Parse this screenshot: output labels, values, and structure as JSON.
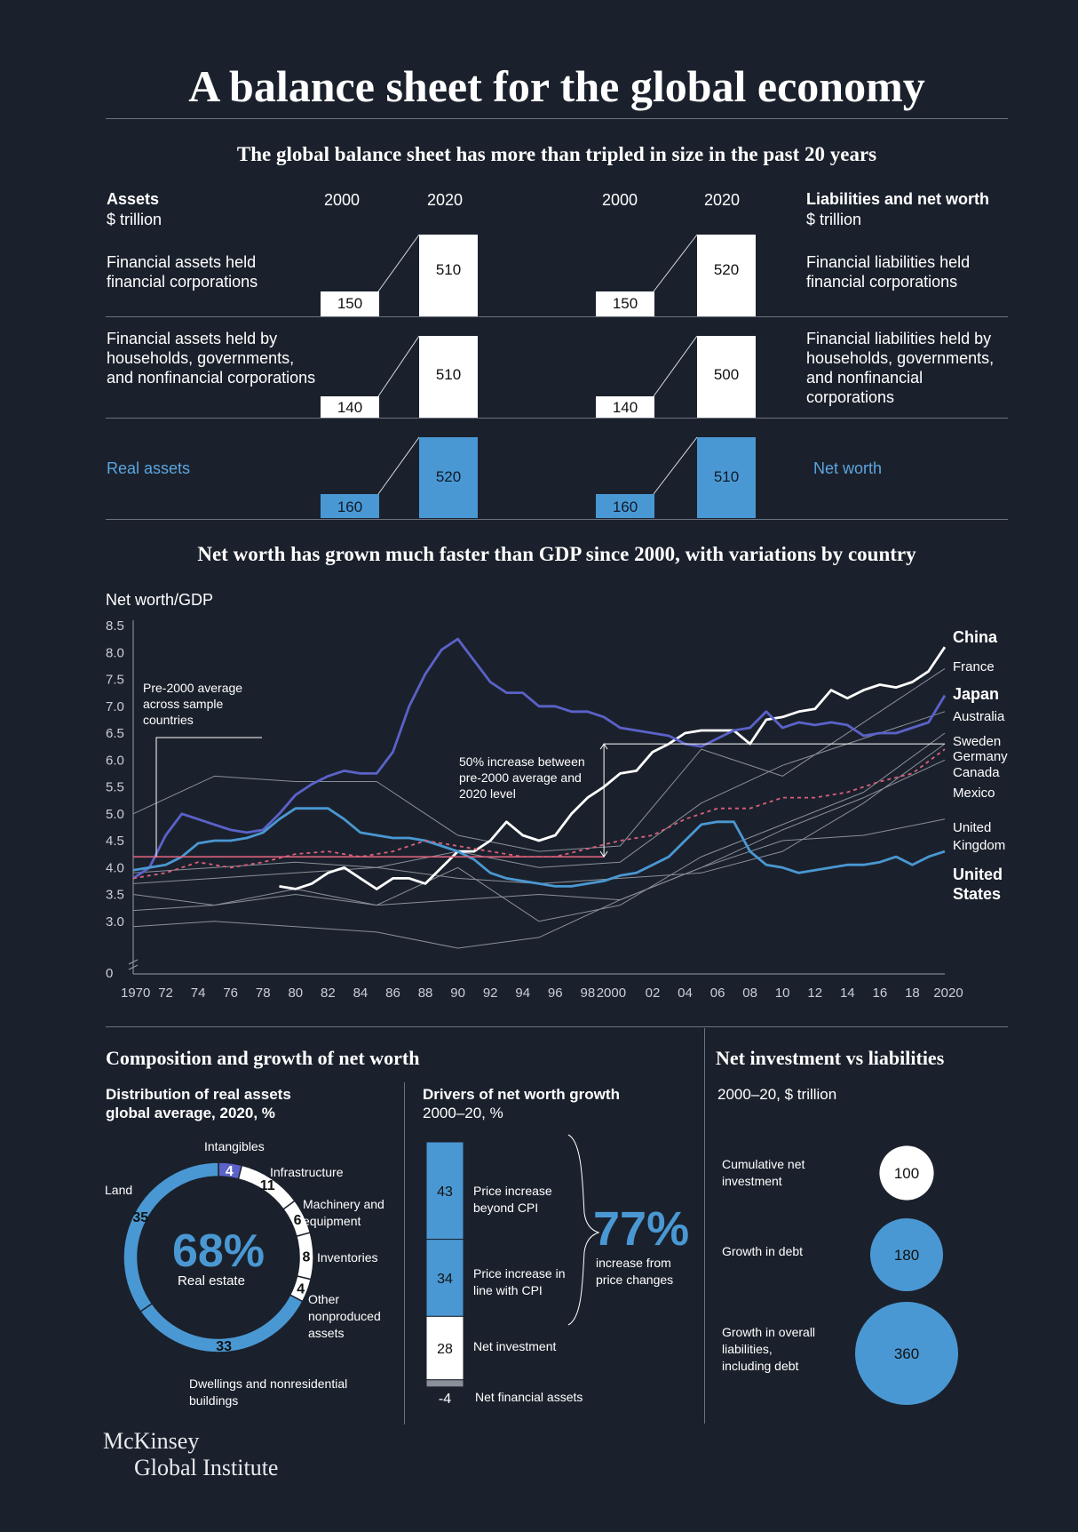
{
  "title": "A balance sheet for the global economy",
  "section1": {
    "subtitle": "The global balance sheet has more than tripled in size in the past 20 years",
    "assets_header": "Assets",
    "assets_unit": "$ trillion",
    "liab_header": "Liabilities and net worth",
    "liab_unit": "$ trillion",
    "year_a": "2000",
    "year_b": "2020",
    "rows": [
      {
        "left": "Financial assets held financial corporations",
        "a2000": "150",
        "a2020": "510",
        "l2000": "150",
        "l2020": "520",
        "right": "Financial liabilities held financial corporations"
      },
      {
        "left": "Financial assets held by households, governments, and nonfinancial corporations",
        "a2000": "140",
        "a2020": "510",
        "l2000": "140",
        "l2020": "500",
        "right": "Financial liabilities held by households, governments, and nonfinancial corporations"
      },
      {
        "left": "Real assets",
        "a2000": "160",
        "a2020": "520",
        "l2000": "160",
        "l2020": "510",
        "right": "Net worth"
      }
    ]
  },
  "section2": {
    "subtitle": "Net worth has grown much faster than GDP since 2000, with variations by country",
    "ylabel": "Net worth/GDP",
    "annotation_pre": [
      "Pre-2000 average",
      "across sample",
      "countries"
    ],
    "annotation_increase": [
      "50% increase between",
      "pre-2000 average and",
      "2020 level"
    ],
    "country_labels": [
      "China",
      "France",
      "Japan",
      "Australia",
      "Sweden",
      "Germany",
      "Canada",
      "Mexico",
      "United",
      "Kingdom",
      "United",
      "States"
    ]
  },
  "chart_data": {
    "type": "line",
    "ylim": [
      0,
      8.5
    ],
    "yticks": [
      "0",
      "3.0",
      "3.5",
      "4.0",
      "4.5",
      "5.0",
      "5.5",
      "6.0",
      "6.5",
      "7.0",
      "7.5",
      "8.0",
      "8.5"
    ],
    "xticks": [
      "1970",
      "72",
      "74",
      "76",
      "78",
      "80",
      "82",
      "84",
      "86",
      "88",
      "90",
      "92",
      "94",
      "96",
      "98",
      "2000",
      "02",
      "04",
      "06",
      "08",
      "10",
      "12",
      "14",
      "16",
      "18",
      "2020"
    ],
    "pre2000_average": 4.2,
    "series": [
      {
        "name": "China",
        "color": "#ffffff",
        "x": [
          1979,
          1980,
          1981,
          1982,
          1983,
          1984,
          1985,
          1986,
          1987,
          1988,
          1989,
          1990,
          1991,
          1992,
          1993,
          1994,
          1995,
          1996,
          1997,
          1998,
          1999,
          2000,
          2001,
          2002,
          2003,
          2004,
          2005,
          2006,
          2007,
          2008,
          2009,
          2010,
          2011,
          2012,
          2013,
          2014,
          2015,
          2016,
          2017,
          2018,
          2019,
          2020
        ],
        "y": [
          3.65,
          3.6,
          3.7,
          3.9,
          4.0,
          3.8,
          3.6,
          3.8,
          3.8,
          3.7,
          4.0,
          4.3,
          4.3,
          4.5,
          4.85,
          4.6,
          4.5,
          4.6,
          5.0,
          5.3,
          5.5,
          5.75,
          5.8,
          6.15,
          6.3,
          6.5,
          6.55,
          6.55,
          6.55,
          6.3,
          6.75,
          6.8,
          6.9,
          6.95,
          7.3,
          7.15,
          7.3,
          7.4,
          7.35,
          7.45,
          7.65,
          8.1
        ]
      },
      {
        "name": "Japan",
        "color": "#5b62c9",
        "x": [
          1970,
          1971,
          1972,
          1973,
          1974,
          1975,
          1976,
          1977,
          1978,
          1979,
          1980,
          1981,
          1982,
          1983,
          1984,
          1985,
          1986,
          1987,
          1988,
          1989,
          1990,
          1991,
          1992,
          1993,
          1994,
          1995,
          1996,
          1997,
          1998,
          1999,
          2000,
          2001,
          2002,
          2003,
          2004,
          2005,
          2006,
          2007,
          2008,
          2009,
          2010,
          2011,
          2012,
          2013,
          2014,
          2015,
          2016,
          2017,
          2018,
          2019,
          2020
        ],
        "y": [
          3.8,
          4.0,
          4.6,
          5.0,
          4.9,
          4.8,
          4.7,
          4.65,
          4.7,
          5.0,
          5.35,
          5.55,
          5.7,
          5.8,
          5.75,
          5.75,
          6.15,
          7.0,
          7.6,
          8.05,
          8.25,
          7.85,
          7.45,
          7.25,
          7.25,
          7.0,
          7.0,
          6.9,
          6.9,
          6.8,
          6.6,
          6.55,
          6.5,
          6.45,
          6.3,
          6.25,
          6.4,
          6.55,
          6.6,
          6.9,
          6.6,
          6.7,
          6.65,
          6.7,
          6.65,
          6.45,
          6.5,
          6.5,
          6.6,
          6.7,
          7.2
        ]
      },
      {
        "name": "United States",
        "color": "#4a98d3",
        "x": [
          1970,
          1971,
          1972,
          1973,
          1974,
          1975,
          1976,
          1977,
          1978,
          1979,
          1980,
          1981,
          1982,
          1983,
          1984,
          1985,
          1986,
          1987,
          1988,
          1989,
          1990,
          1991,
          1992,
          1993,
          1994,
          1995,
          1996,
          1997,
          1998,
          1999,
          2000,
          2001,
          2002,
          2003,
          2004,
          2005,
          2006,
          2007,
          2008,
          2009,
          2010,
          2011,
          2012,
          2013,
          2014,
          2015,
          2016,
          2017,
          2018,
          2019,
          2020
        ],
        "y": [
          3.95,
          4.0,
          4.05,
          4.2,
          4.45,
          4.5,
          4.5,
          4.55,
          4.65,
          4.9,
          5.1,
          5.1,
          5.1,
          4.9,
          4.65,
          4.6,
          4.55,
          4.55,
          4.5,
          4.4,
          4.3,
          4.15,
          3.9,
          3.8,
          3.75,
          3.7,
          3.65,
          3.65,
          3.7,
          3.75,
          3.85,
          3.9,
          4.05,
          4.2,
          4.5,
          4.8,
          4.85,
          4.85,
          4.3,
          4.05,
          4.0,
          3.9,
          3.95,
          4.0,
          4.05,
          4.05,
          4.1,
          4.2,
          4.05,
          4.2,
          4.3
        ]
      },
      {
        "name": "Mexico",
        "color": "#d9607b",
        "x": [
          1970,
          1972,
          1974,
          1976,
          1978,
          1980,
          1982,
          1984,
          1986,
          1988,
          1990,
          1992,
          1994,
          1996,
          1998,
          2000,
          2002,
          2004,
          2006,
          2008,
          2010,
          2012,
          2014,
          2016,
          2018,
          2020
        ],
        "y": [
          3.8,
          3.9,
          4.1,
          4.0,
          4.1,
          4.25,
          4.3,
          4.2,
          4.3,
          4.5,
          4.4,
          4.3,
          4.2,
          4.2,
          4.35,
          4.5,
          4.6,
          4.9,
          5.1,
          5.1,
          5.3,
          5.3,
          5.4,
          5.6,
          5.75,
          6.2
        ]
      },
      {
        "name": "France",
        "color": "#8a8f99",
        "x": [
          1970,
          1975,
          1980,
          1985,
          1990,
          1995,
          2000,
          2005,
          2010,
          2015,
          2020
        ],
        "y": [
          5.0,
          5.7,
          5.6,
          5.6,
          4.6,
          4.3,
          4.4,
          6.2,
          5.7,
          6.7,
          7.7
        ]
      },
      {
        "name": "Australia",
        "color": "#8a8f99",
        "x": [
          1970,
          1975,
          1980,
          1985,
          1990,
          1995,
          2000,
          2005,
          2010,
          2015,
          2020
        ],
        "y": [
          3.9,
          4.0,
          4.1,
          4.0,
          4.3,
          4.0,
          4.1,
          5.2,
          5.9,
          6.4,
          6.9
        ]
      },
      {
        "name": "Sweden",
        "color": "#8a8f99",
        "x": [
          1970,
          1975,
          1980,
          1985,
          1990,
          1995,
          2000,
          2005,
          2010,
          2015,
          2020
        ],
        "y": [
          3.2,
          3.3,
          3.5,
          3.3,
          4.0,
          3.0,
          3.3,
          4.2,
          4.8,
          5.4,
          6.5
        ]
      },
      {
        "name": "Germany",
        "color": "#8a8f99",
        "x": [
          1970,
          1975,
          1980,
          1985,
          1990,
          1995,
          2000,
          2005,
          2010,
          2015,
          2020
        ],
        "y": [
          3.7,
          3.8,
          3.9,
          4.0,
          3.8,
          3.7,
          3.8,
          3.9,
          4.3,
          5.2,
          6.3
        ]
      },
      {
        "name": "Canada",
        "color": "#8a8f99",
        "x": [
          1970,
          1975,
          1980,
          1985,
          1990,
          1995,
          2000,
          2005,
          2010,
          2015,
          2020
        ],
        "y": [
          3.5,
          3.3,
          3.6,
          3.3,
          3.4,
          3.5,
          3.4,
          4.0,
          4.7,
          5.3,
          6.0
        ]
      },
      {
        "name": "United Kingdom",
        "color": "#8a8f99",
        "x": [
          1970,
          1975,
          1980,
          1985,
          1990,
          1995,
          2000,
          2005,
          2010,
          2015,
          2020
        ],
        "y": [
          2.9,
          3.0,
          2.9,
          2.8,
          2.5,
          2.7,
          3.4,
          4.0,
          4.5,
          4.6,
          4.9
        ]
      }
    ]
  },
  "section3": {
    "heading": "Composition and growth of net worth",
    "dist_title": [
      "Distribution of real assets",
      "global average, 2020, %"
    ],
    "big_value": "68%",
    "big_label": "Real estate",
    "donut": [
      {
        "label": "Intangibles",
        "value": 4,
        "color": "#5b62c9"
      },
      {
        "label": "Infrastructure",
        "value": 11,
        "color": "#ffffff"
      },
      {
        "label": "Machinery and equipment",
        "value": 6,
        "color": "#ffffff"
      },
      {
        "label": "Inventories",
        "value": 8,
        "color": "#ffffff"
      },
      {
        "label": "Other nonproduced assets",
        "value": 4,
        "color": "#ffffff"
      },
      {
        "label": "Dwellings and nonresidential buildings",
        "value": 33,
        "color": "#4a98d3"
      },
      {
        "label": "Land",
        "value": 35,
        "color": "#4a98d3"
      }
    ],
    "drivers_title": "Drivers of net worth growth",
    "drivers_unit": "2000–20, %",
    "drivers": [
      {
        "label": "Price increase beyond CPI",
        "value": 43
      },
      {
        "label": "Price increase in line with CPI",
        "value": 34
      },
      {
        "label": "Net investment",
        "value": 28
      },
      {
        "label": "Net financial assets",
        "value": -4
      }
    ],
    "pct_big": "77%",
    "pct_label": [
      "increase from",
      "price changes"
    ]
  },
  "section4": {
    "heading": "Net investment vs liabilities",
    "unit": "2000–20, $ trillion",
    "bubbles": [
      {
        "label": "Cumulative net investment",
        "value": 100
      },
      {
        "label": "Growth in debt",
        "value": 180
      },
      {
        "label": "Growth in overall liabilities, including debt",
        "value": 360
      }
    ]
  },
  "footer": {
    "line1": "McKinsey",
    "line2": "Global Institute"
  },
  "colors": {
    "background": "#1b212c",
    "blue": "#4a98d3",
    "indigo": "#5b62c9",
    "pink": "#d9607b",
    "gray": "#8a8f99"
  }
}
